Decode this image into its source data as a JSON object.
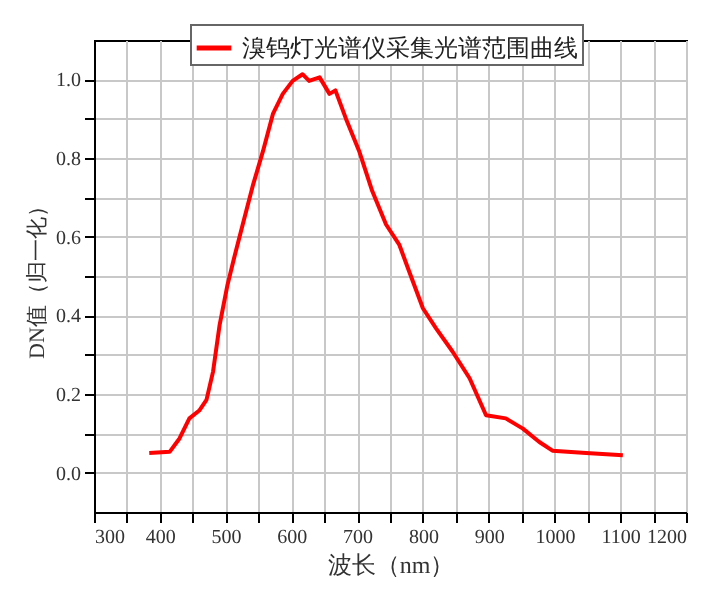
{
  "chart_data": {
    "type": "line",
    "xlabel": "波长（nm）",
    "ylabel": "DN值（归一化）",
    "x": [
      384,
      415,
      430,
      445,
      460,
      471,
      481,
      491,
      503,
      513,
      526,
      542,
      557,
      572,
      587,
      602,
      617,
      627,
      643,
      658,
      667,
      683,
      703,
      723,
      744,
      764,
      779,
      800,
      820,
      845,
      871,
      896,
      926,
      952,
      977,
      997,
      1048,
      1104
    ],
    "series": [
      {
        "name": "溴钨灯光谱仪采集光谱范围曲线",
        "color": "#ff0000",
        "values": [
          0.05,
          0.053,
          0.087,
          0.138,
          0.158,
          0.185,
          0.257,
          0.376,
          0.478,
          0.546,
          0.63,
          0.733,
          0.818,
          0.912,
          0.963,
          0.996,
          1.013,
          0.996,
          1.005,
          0.963,
          0.972,
          0.9,
          0.818,
          0.716,
          0.631,
          0.58,
          0.512,
          0.418,
          0.367,
          0.308,
          0.24,
          0.146,
          0.138,
          0.112,
          0.078,
          0.056,
          0.05,
          0.044
        ]
      }
    ],
    "xlim": [
      300,
      1200
    ],
    "ylim": [
      -0.1,
      1.1
    ],
    "xticks": [
      300,
      {
        "value": 350,
        "label": null
      },
      400,
      {
        "value": 450,
        "label": null
      },
      500,
      {
        "value": 550,
        "label": null
      },
      600,
      {
        "value": 650,
        "label": null
      },
      700,
      {
        "value": 750,
        "label": null
      },
      800,
      {
        "value": 850,
        "label": null
      },
      900,
      {
        "value": 950,
        "label": null
      },
      1000,
      {
        "value": 1050,
        "label": null
      },
      1100,
      {
        "value": 1150,
        "label": null
      },
      1200
    ],
    "yticks": [
      {
        "value": 0,
        "label": "0.0"
      },
      {
        "value": 0.1,
        "label": null
      },
      0.2,
      {
        "value": 0.3,
        "label": null
      },
      0.4,
      {
        "value": 0.5,
        "label": null
      },
      0.6,
      {
        "value": 0.7,
        "label": null
      },
      0.8,
      {
        "value": 0.9,
        "label": null
      },
      {
        "value": 1,
        "label": "1.0"
      }
    ],
    "grid": true,
    "legend": "top",
    "line_style": "solid",
    "marker": "none"
  }
}
